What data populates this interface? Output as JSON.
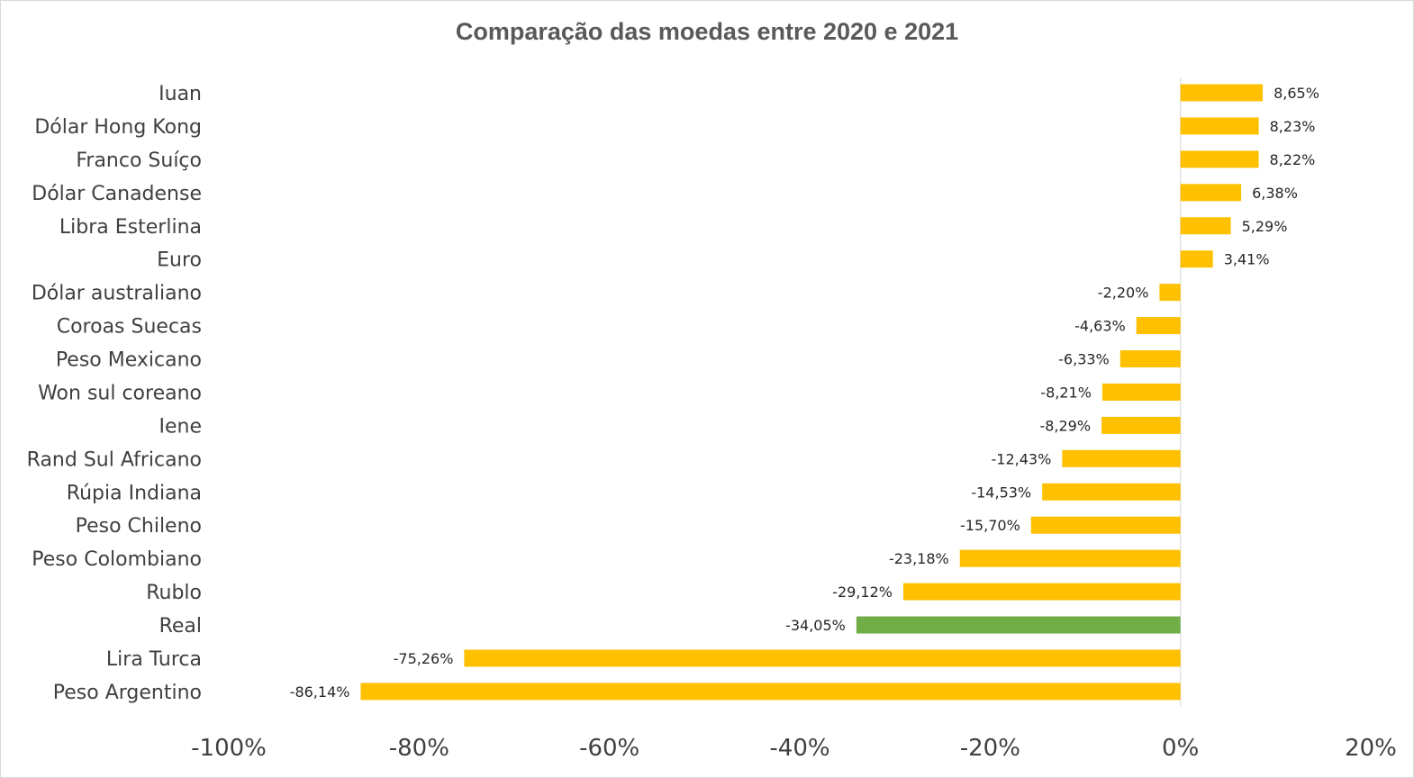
{
  "chart_data": {
    "type": "bar",
    "orientation": "horizontal",
    "title": "Comparação das moedas entre 2020 e 2021",
    "xlabel": "",
    "ylabel": "",
    "xlim": [
      -100,
      20
    ],
    "x_ticks": [
      -100,
      -80,
      -60,
      -40,
      -20,
      0,
      20
    ],
    "x_tick_labels": [
      "-100%",
      "-80%",
      "-60%",
      "-40%",
      "-20%",
      "0%",
      "20%"
    ],
    "grid": false,
    "legend": "none",
    "categories": [
      "Iuan",
      "Dólar Hong Kong",
      "Franco Suíço",
      "Dólar Canadense",
      "Libra Esterlina",
      "Euro",
      "Dólar australiano",
      "Coroas Suecas",
      "Peso Mexicano",
      "Won sul coreano",
      "Iene",
      "Rand Sul Africano",
      "Rúpia Indiana",
      "Peso Chileno",
      "Peso Colombiano",
      "Rublo",
      "Real",
      "Lira Turca",
      "Peso Argentino"
    ],
    "values": [
      8.65,
      8.23,
      8.22,
      6.38,
      5.29,
      3.41,
      -2.2,
      -4.63,
      -6.33,
      -8.21,
      -8.29,
      -12.43,
      -14.53,
      -15.7,
      -23.18,
      -29.12,
      -34.05,
      -75.26,
      -86.14
    ],
    "data_labels": [
      "8,65%",
      "8,23%",
      "8,22%",
      "6,38%",
      "5,29%",
      "3,41%",
      "-2,20%",
      "-4,63%",
      "-6,33%",
      "-8,21%",
      "-8,29%",
      "-12,43%",
      "-14,53%",
      "-15,70%",
      "-23,18%",
      "-29,12%",
      "-34,05%",
      "-75,26%",
      "-86,14%"
    ],
    "colors": {
      "default": "#ffc000",
      "highlight": "#70ad47",
      "highlight_category": "Real"
    }
  }
}
